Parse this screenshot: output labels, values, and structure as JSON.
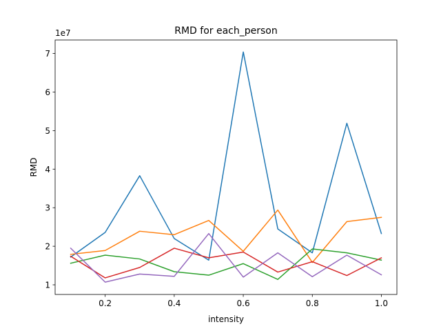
{
  "chart_data": {
    "type": "line",
    "title": "RMD for each_person",
    "xlabel": "intensity",
    "ylabel": "RMD",
    "y_exponent_label": "1e7",
    "xlim": [
      0.055,
      1.045
    ],
    "ylim": [
      7500000,
      73500000
    ],
    "x_ticks": [
      0.2,
      0.4,
      0.6,
      0.8,
      1.0
    ],
    "x_tick_labels": [
      "0.2",
      "0.4",
      "0.6",
      "0.8",
      "1.0"
    ],
    "y_ticks": [
      10000000,
      20000000,
      30000000,
      40000000,
      50000000,
      60000000,
      70000000
    ],
    "y_tick_labels": [
      "1",
      "2",
      "3",
      "4",
      "5",
      "6",
      "7"
    ],
    "grid": false,
    "x": [
      0.1,
      0.2,
      0.3,
      0.4,
      0.5,
      0.6,
      0.7,
      0.8,
      0.9,
      1.0
    ],
    "series": [
      {
        "color": "#1f77b4",
        "values": [
          17200000,
          23600000,
          38300000,
          22000000,
          16400000,
          70400000,
          24500000,
          18300000,
          51900000,
          23300000
        ]
      },
      {
        "color": "#ff7f0e",
        "values": [
          17900000,
          18900000,
          23900000,
          23000000,
          26700000,
          18700000,
          29400000,
          15800000,
          26400000,
          27500000
        ]
      },
      {
        "color": "#2ca02c",
        "values": [
          15600000,
          17700000,
          16700000,
          13400000,
          12500000,
          15500000,
          11400000,
          19300000,
          18300000,
          16400000
        ]
      },
      {
        "color": "#d62728",
        "values": [
          17400000,
          11800000,
          14500000,
          19500000,
          17000000,
          18500000,
          13300000,
          16000000,
          12400000,
          17000000
        ]
      },
      {
        "color": "#9467bd",
        "values": [
          19500000,
          10700000,
          12800000,
          12200000,
          23300000,
          12000000,
          18300000,
          12100000,
          17700000,
          12600000
        ]
      }
    ]
  }
}
